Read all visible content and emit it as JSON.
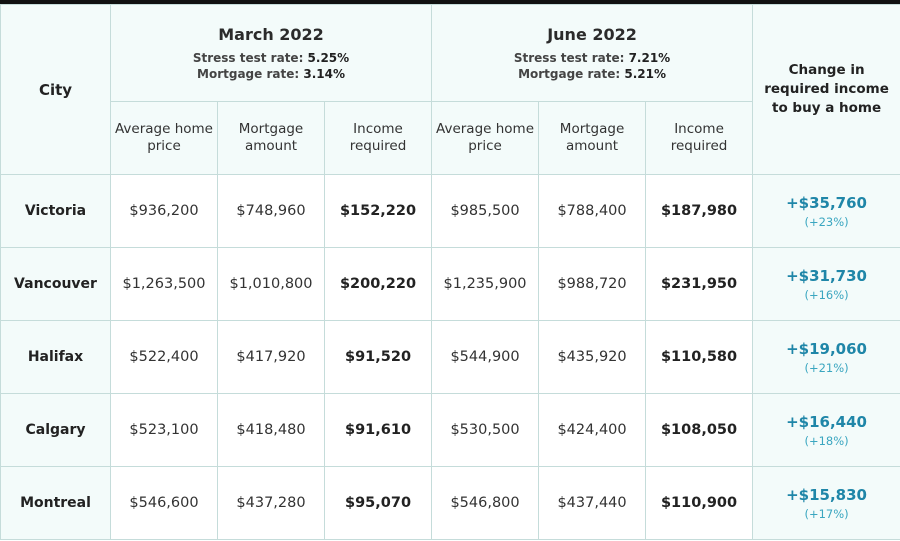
{
  "chart_data": {
    "type": "table",
    "columns": {
      "city": "City",
      "change": "Change in required income to buy a home",
      "sub": [
        "Average home price",
        "Mortgage amount",
        "Income required"
      ]
    },
    "periods": [
      {
        "name": "March 2022",
        "stress_label": "Stress test rate: ",
        "stress_rate": "5.25%",
        "mortgage_label": "Mortgage rate: ",
        "mortgage_rate": "3.14%"
      },
      {
        "name": "June 2022",
        "stress_label": "Stress test rate: ",
        "stress_rate": "7.21%",
        "mortgage_label": "Mortgage rate: ",
        "mortgage_rate": "5.21%"
      }
    ],
    "rows": [
      {
        "city": "Victoria",
        "mar_price": "$936,200",
        "mar_mortgage": "$748,960",
        "mar_income": "$152,220",
        "jun_price": "$985,500",
        "jun_mortgage": "$788,400",
        "jun_income": "$187,980",
        "change": "+$35,760",
        "change_pct": "(+23%)"
      },
      {
        "city": "Vancouver",
        "mar_price": "$1,263,500",
        "mar_mortgage": "$1,010,800",
        "mar_income": "$200,220",
        "jun_price": "$1,235,900",
        "jun_mortgage": "$988,720",
        "jun_income": "$231,950",
        "change": "+$31,730",
        "change_pct": "(+16%)"
      },
      {
        "city": "Halifax",
        "mar_price": "$522,400",
        "mar_mortgage": "$417,920",
        "mar_income": "$91,520",
        "jun_price": "$544,900",
        "jun_mortgage": "$435,920",
        "jun_income": "$110,580",
        "change": "+$19,060",
        "change_pct": "(+21%)"
      },
      {
        "city": "Calgary",
        "mar_price": "$523,100",
        "mar_mortgage": "$418,480",
        "mar_income": "$91,610",
        "jun_price": "$530,500",
        "jun_mortgage": "$424,400",
        "jun_income": "$108,050",
        "change": "+$16,440",
        "change_pct": "(+18%)"
      },
      {
        "city": "Montreal",
        "mar_price": "$546,600",
        "mar_mortgage": "$437,280",
        "mar_income": "$95,070",
        "jun_price": "$546,800",
        "jun_mortgage": "$437,440",
        "jun_income": "$110,900",
        "change": "+$15,830",
        "change_pct": "(+17%)"
      }
    ],
    "colors": {
      "accent": "#1f86a8",
      "accent_light": "#3aa6c0",
      "header_bg": "#f3fbfa",
      "border": "#c5dcda"
    }
  }
}
